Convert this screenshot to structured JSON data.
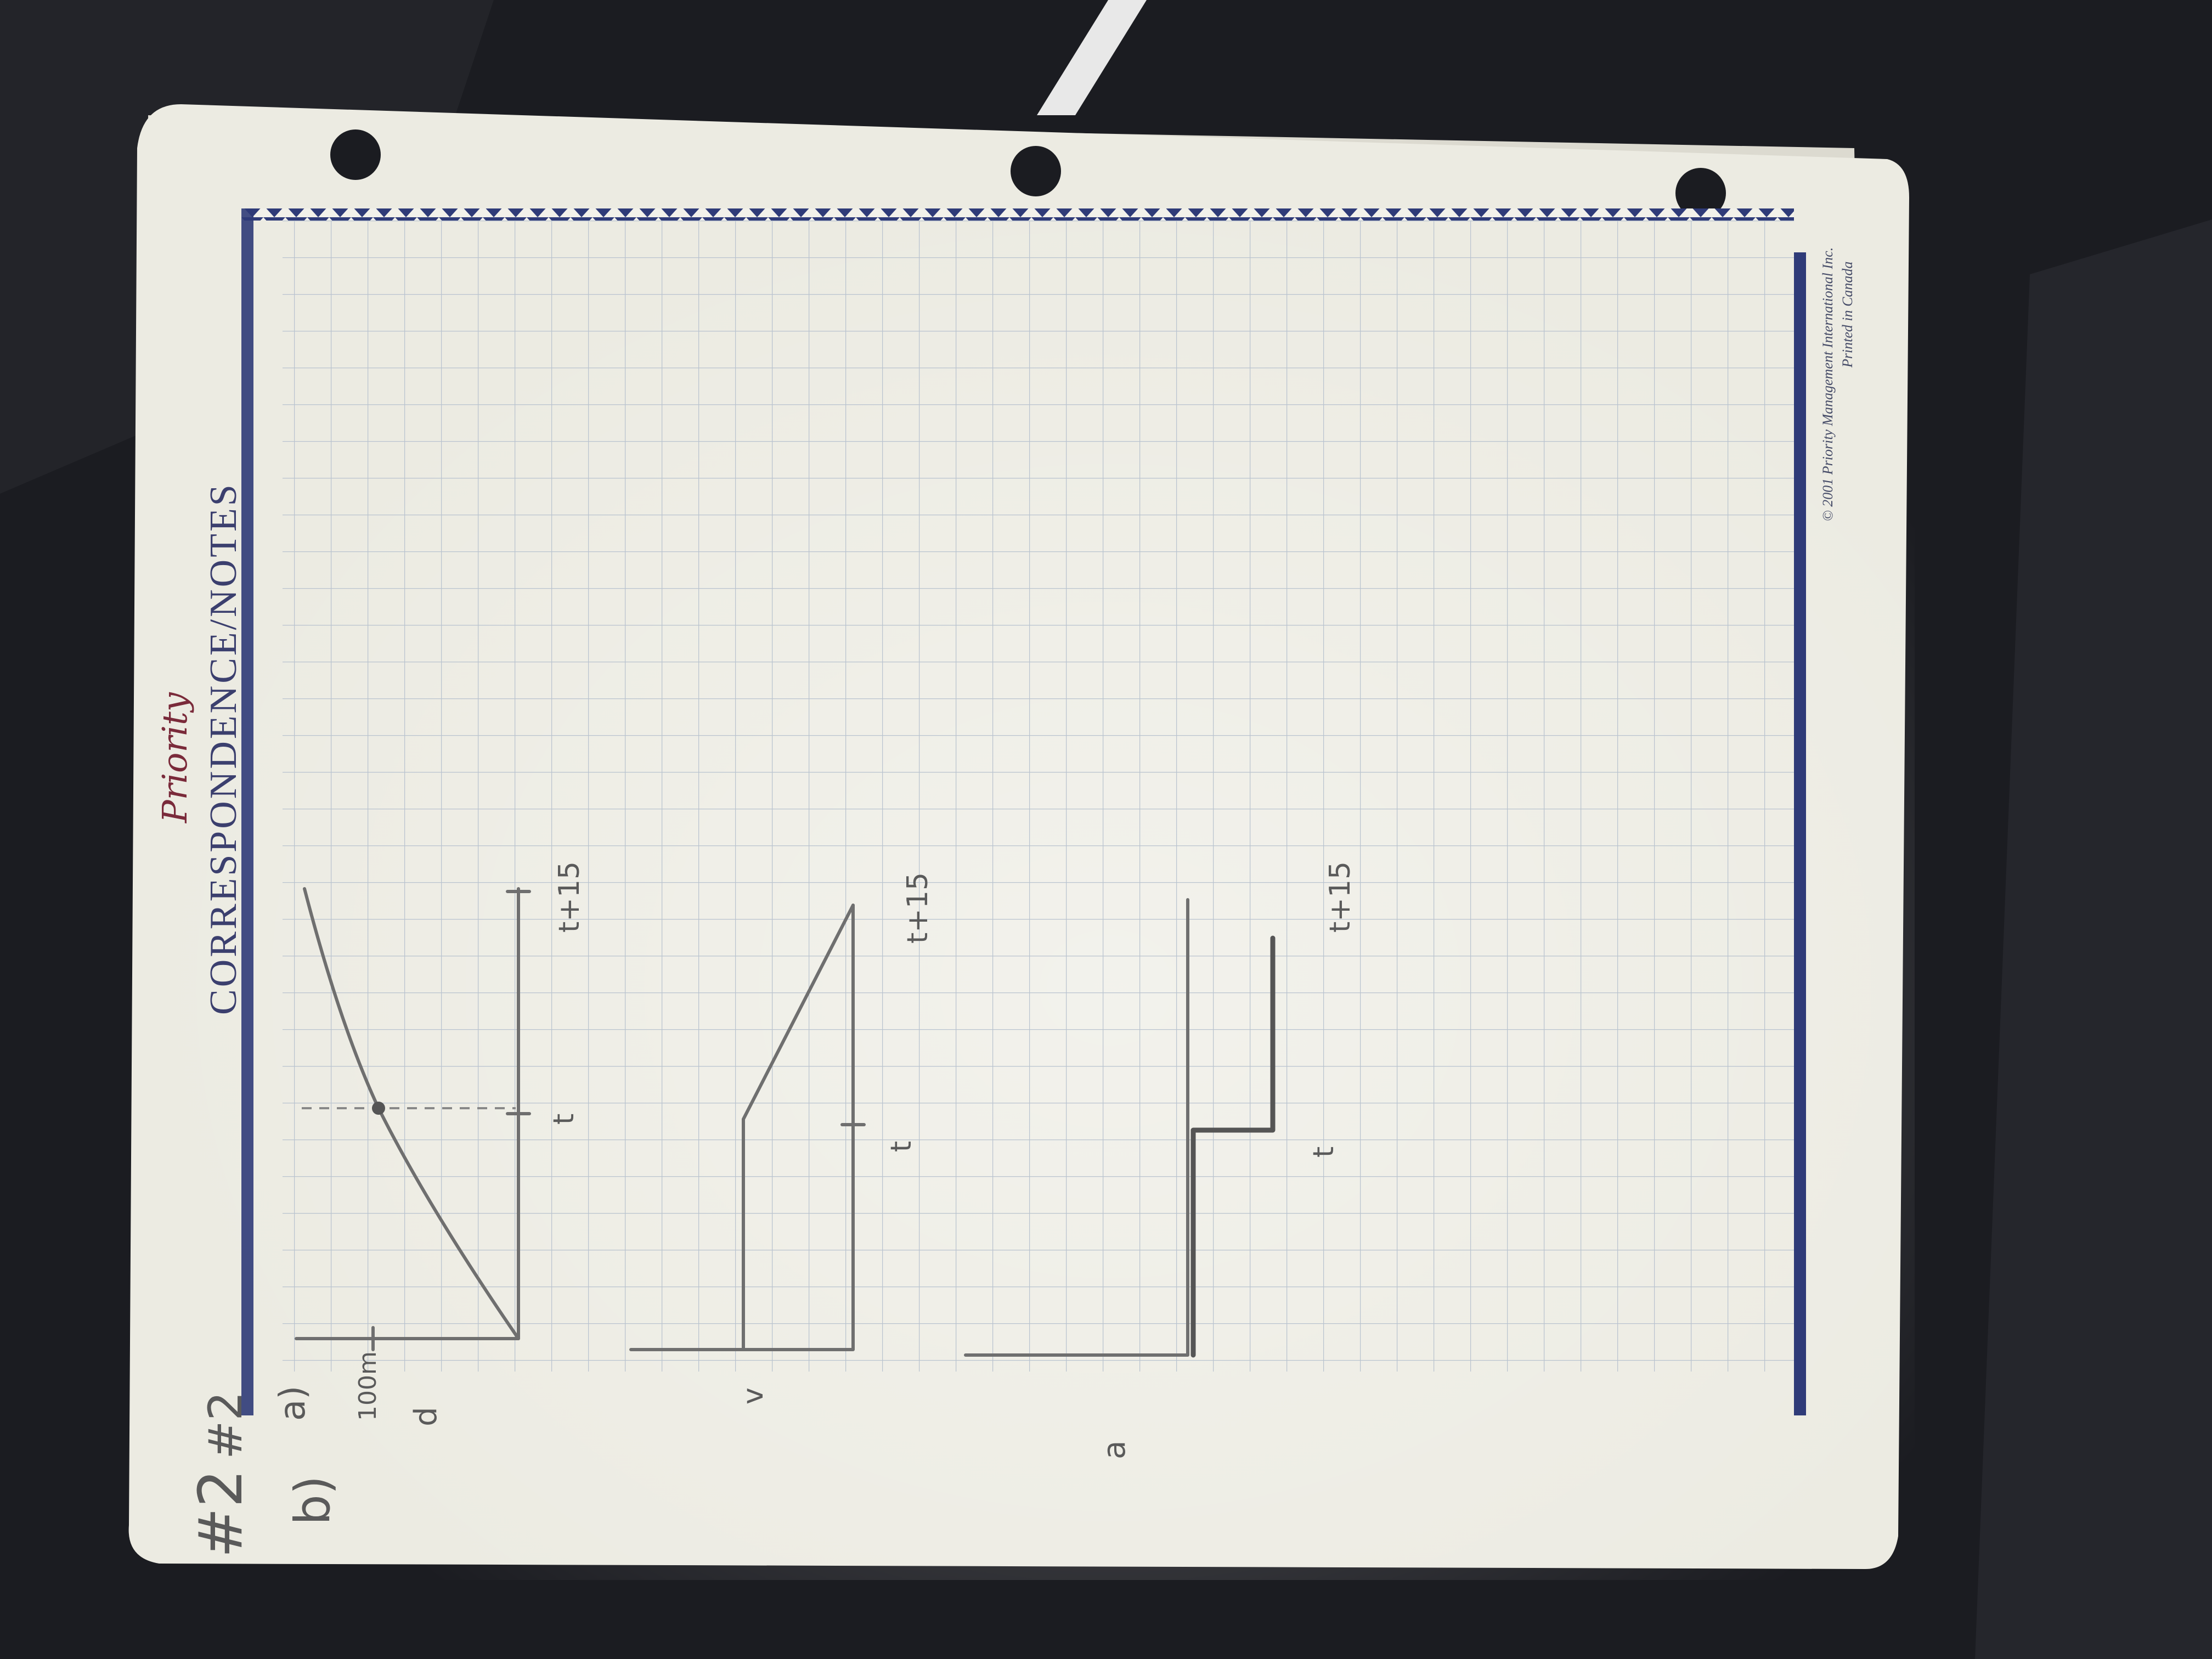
{
  "notepad": {
    "brand": "Priority",
    "title": "CORRESPONDENCE/NOTES",
    "copyright": "© 2001 Priority Management International Inc.",
    "printed": "Printed in Canada"
  },
  "handwriting": {
    "problem": "#2",
    "problem_repeat": "#2",
    "part_a": "a)",
    "part_b": "b)",
    "graph_d": {
      "y_tick": "100m",
      "y_axis": "d",
      "x_tick_1": "t",
      "x_tick_2": "t+15"
    },
    "graph_v": {
      "y_axis": "v",
      "x_tick_1": "t",
      "x_tick_2": "t+15"
    },
    "graph_a": {
      "y_axis": "a",
      "x_tick_1": "t",
      "x_tick_2": "t+15"
    }
  },
  "colors": {
    "background": "#1b1c21",
    "paper": "#ecebe2",
    "grid": "#b9c3cf",
    "border_blue": "#2f3b78",
    "pencil": "#6f6f6f"
  }
}
